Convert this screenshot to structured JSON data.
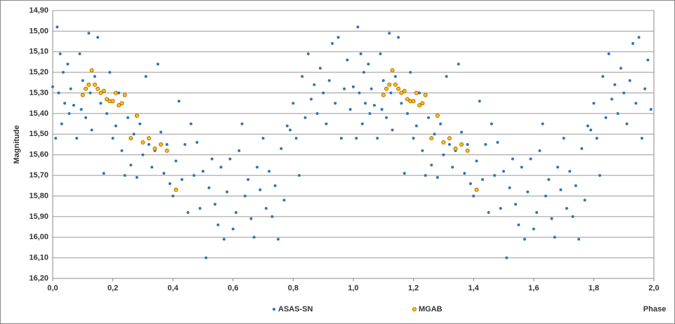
{
  "chart_data": {
    "type": "scatter",
    "y_label": "Magnitude",
    "x_label": "Phase",
    "xlim": [
      0,
      2
    ],
    "ylim": [
      16.2,
      14.9
    ],
    "y_inverted": true,
    "grid": true,
    "legend": "bottom",
    "xticks": [
      {
        "value": 0,
        "label": "0,0"
      },
      {
        "value": 0.2,
        "label": "0,2"
      },
      {
        "value": 0.4,
        "label": "0,4"
      },
      {
        "value": 0.6,
        "label": "0,6"
      },
      {
        "value": 0.8,
        "label": "0,8"
      },
      {
        "value": 1.0,
        "label": "1,0"
      },
      {
        "value": 1.2,
        "label": "1,2"
      },
      {
        "value": 1.4,
        "label": "1,4"
      },
      {
        "value": 1.6,
        "label": "1,6"
      },
      {
        "value": 1.8,
        "label": "1,8"
      },
      {
        "value": 2.0,
        "label": "2,0"
      }
    ],
    "yticks": [
      {
        "value": 14.9,
        "label": "14,90"
      },
      {
        "value": 15.0,
        "label": "15,00"
      },
      {
        "value": 15.1,
        "label": "15,10"
      },
      {
        "value": 15.2,
        "label": "15,20"
      },
      {
        "value": 15.3,
        "label": "15,30"
      },
      {
        "value": 15.4,
        "label": "15,40"
      },
      {
        "value": 15.5,
        "label": "15,50"
      },
      {
        "value": 15.6,
        "label": "15,60"
      },
      {
        "value": 15.7,
        "label": "15,70"
      },
      {
        "value": 15.8,
        "label": "15,80"
      },
      {
        "value": 15.9,
        "label": "15,90"
      },
      {
        "value": 16.0,
        "label": "16,00"
      },
      {
        "value": 16.1,
        "label": "16,10"
      },
      {
        "value": 16.2,
        "label": "16,20"
      }
    ],
    "series": [
      {
        "name": "ASAS-SN",
        "color": "#2e75b6",
        "marker": "dot",
        "x": [
          0.0,
          0.01,
          0.015,
          0.02,
          0.025,
          0.03,
          0.035,
          0.04,
          0.05,
          0.055,
          0.06,
          0.07,
          0.08,
          0.09,
          0.095,
          0.1,
          0.11,
          0.12,
          0.125,
          0.13,
          0.14,
          0.15,
          0.16,
          0.17,
          0.18,
          0.19,
          0.2,
          0.21,
          0.22,
          0.23,
          0.24,
          0.25,
          0.26,
          0.27,
          0.28,
          0.29,
          0.3,
          0.31,
          0.32,
          0.33,
          0.34,
          0.35,
          0.36,
          0.37,
          0.38,
          0.39,
          0.4,
          0.41,
          0.42,
          0.43,
          0.44,
          0.45,
          0.46,
          0.47,
          0.48,
          0.49,
          0.5,
          0.51,
          0.52,
          0.53,
          0.54,
          0.55,
          0.56,
          0.57,
          0.58,
          0.59,
          0.6,
          0.61,
          0.62,
          0.63,
          0.64,
          0.65,
          0.66,
          0.67,
          0.68,
          0.69,
          0.7,
          0.71,
          0.72,
          0.73,
          0.74,
          0.75,
          0.76,
          0.77,
          0.78,
          0.79,
          0.8,
          0.81,
          0.82,
          0.83,
          0.84,
          0.85,
          0.86,
          0.87,
          0.88,
          0.89,
          0.9,
          0.91,
          0.92,
          0.93,
          0.94,
          0.95,
          0.96,
          0.97,
          0.98,
          0.99,
          1.0,
          1.01,
          1.015,
          1.02,
          1.025,
          1.03,
          1.035,
          1.04,
          1.05,
          1.055,
          1.06,
          1.07,
          1.08,
          1.09,
          1.095,
          1.1,
          1.11,
          1.12,
          1.125,
          1.13,
          1.14,
          1.15,
          1.16,
          1.17,
          1.18,
          1.19,
          1.2,
          1.21,
          1.22,
          1.23,
          1.24,
          1.25,
          1.26,
          1.27,
          1.28,
          1.29,
          1.3,
          1.31,
          1.32,
          1.33,
          1.34,
          1.35,
          1.36,
          1.37,
          1.38,
          1.39,
          1.4,
          1.41,
          1.42,
          1.43,
          1.44,
          1.45,
          1.46,
          1.47,
          1.48,
          1.49,
          1.5,
          1.51,
          1.52,
          1.53,
          1.54,
          1.55,
          1.56,
          1.57,
          1.58,
          1.59,
          1.6,
          1.61,
          1.62,
          1.63,
          1.64,
          1.65,
          1.66,
          1.67,
          1.68,
          1.69,
          1.7,
          1.71,
          1.72,
          1.73,
          1.74,
          1.75,
          1.76,
          1.77,
          1.78,
          1.79,
          1.8,
          1.81,
          1.82,
          1.83,
          1.84,
          1.85,
          1.86,
          1.87,
          1.88,
          1.89,
          1.9,
          1.91,
          1.92,
          1.93,
          1.94,
          1.95,
          1.96,
          1.97,
          1.98,
          1.99
        ],
        "values": [
          15.27,
          15.52,
          14.98,
          15.3,
          15.11,
          15.45,
          15.2,
          15.35,
          15.16,
          15.4,
          15.28,
          15.36,
          15.52,
          15.11,
          15.38,
          15.24,
          15.42,
          15.01,
          15.3,
          15.48,
          15.22,
          15.03,
          15.35,
          15.69,
          15.4,
          15.2,
          15.52,
          15.46,
          15.3,
          15.58,
          15.7,
          15.42,
          15.65,
          15.5,
          15.71,
          15.45,
          15.6,
          15.22,
          15.55,
          15.66,
          15.58,
          15.16,
          15.49,
          15.69,
          15.55,
          15.74,
          15.8,
          15.63,
          15.34,
          15.72,
          15.55,
          15.88,
          15.45,
          15.7,
          15.54,
          15.86,
          15.68,
          16.1,
          15.76,
          15.62,
          15.84,
          15.94,
          15.66,
          16.01,
          15.78,
          15.62,
          15.96,
          15.88,
          15.58,
          15.45,
          15.8,
          15.72,
          15.91,
          16.0,
          15.66,
          15.77,
          15.52,
          15.86,
          15.68,
          15.9,
          15.75,
          16.01,
          15.57,
          15.82,
          15.46,
          15.48,
          15.35,
          15.52,
          15.7,
          15.22,
          15.42,
          15.11,
          15.33,
          15.26,
          15.4,
          15.18,
          15.3,
          15.45,
          15.24,
          15.06,
          15.35,
          15.03,
          15.52,
          15.28,
          15.14,
          15.38,
          15.27,
          15.52,
          14.98,
          15.3,
          15.11,
          15.45,
          15.2,
          15.35,
          15.16,
          15.4,
          15.28,
          15.36,
          15.52,
          15.11,
          15.38,
          15.24,
          15.42,
          15.01,
          15.3,
          15.48,
          15.22,
          15.03,
          15.35,
          15.69,
          15.4,
          15.2,
          15.52,
          15.46,
          15.3,
          15.58,
          15.7,
          15.42,
          15.65,
          15.5,
          15.71,
          15.45,
          15.6,
          15.22,
          15.55,
          15.66,
          15.58,
          15.16,
          15.49,
          15.69,
          15.55,
          15.74,
          15.8,
          15.63,
          15.34,
          15.72,
          15.55,
          15.88,
          15.45,
          15.7,
          15.54,
          15.86,
          15.68,
          16.1,
          15.76,
          15.62,
          15.84,
          15.94,
          15.66,
          16.01,
          15.78,
          15.62,
          15.96,
          15.88,
          15.58,
          15.45,
          15.8,
          15.72,
          15.91,
          16.0,
          15.66,
          15.77,
          15.52,
          15.86,
          15.68,
          15.9,
          15.75,
          16.01,
          15.57,
          15.82,
          15.46,
          15.48,
          15.35,
          15.52,
          15.7,
          15.22,
          15.42,
          15.11,
          15.33,
          15.26,
          15.4,
          15.18,
          15.3,
          15.45,
          15.24,
          15.06,
          15.35,
          15.03,
          15.52,
          15.28,
          15.14,
          15.38
        ]
      },
      {
        "name": "MGAB",
        "color": "#ffc000",
        "marker": "circle",
        "x": [
          0.1,
          0.11,
          0.12,
          0.13,
          0.14,
          0.15,
          0.16,
          0.17,
          0.18,
          0.19,
          0.2,
          0.21,
          0.22,
          0.23,
          0.24,
          0.26,
          0.28,
          0.3,
          0.32,
          0.34,
          0.36,
          0.38,
          0.41,
          1.1,
          1.11,
          1.12,
          1.13,
          1.14,
          1.15,
          1.16,
          1.17,
          1.18,
          1.19,
          1.2,
          1.21,
          1.22,
          1.23,
          1.24,
          1.26,
          1.28,
          1.3,
          1.32,
          1.34,
          1.36,
          1.38,
          1.41
        ],
        "values": [
          15.31,
          15.28,
          15.26,
          15.19,
          15.26,
          15.28,
          15.3,
          15.29,
          15.33,
          15.34,
          15.34,
          15.3,
          15.36,
          15.35,
          15.31,
          15.52,
          15.41,
          15.54,
          15.52,
          15.57,
          15.55,
          15.58,
          15.77,
          15.31,
          15.28,
          15.26,
          15.19,
          15.26,
          15.28,
          15.3,
          15.29,
          15.33,
          15.34,
          15.34,
          15.3,
          15.36,
          15.35,
          15.31,
          15.52,
          15.41,
          15.54,
          15.52,
          15.57,
          15.55,
          15.58,
          15.77
        ]
      }
    ]
  }
}
